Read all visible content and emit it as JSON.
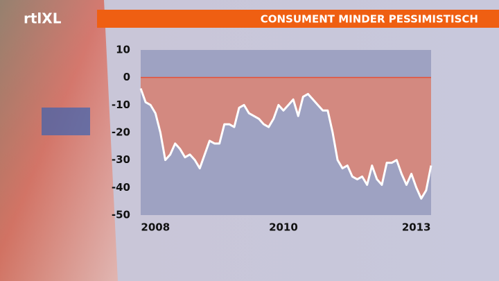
{
  "logo": "rtlXL",
  "chart_data": {
    "type": "area",
    "title": "CONSUMENT MINDER PESSIMISTISCH",
    "categories": [
      null,
      null,
      null,
      "2008",
      null,
      null,
      null,
      null,
      null,
      null,
      null,
      null,
      null,
      null,
      null,
      null,
      null,
      null,
      null,
      null,
      null,
      null,
      null,
      null,
      null,
      null,
      null,
      null,
      null,
      "2010",
      null,
      null,
      null,
      null,
      null,
      null,
      null,
      null,
      null,
      null,
      null,
      null,
      null,
      null,
      null,
      null,
      null,
      null,
      null,
      null,
      null,
      null,
      null,
      null,
      null,
      null,
      "2013",
      null,
      null,
      null
    ],
    "values": [
      -4,
      -9,
      -10,
      -13,
      -20,
      -30,
      -28,
      -24,
      -26,
      -29,
      -28,
      -30,
      -33,
      -28,
      -23,
      -24,
      -24,
      -17,
      -17,
      -18,
      -11,
      -10,
      -13,
      -14,
      -15,
      -17,
      -18,
      -15,
      -10,
      -12,
      -10,
      -8,
      -14,
      -7,
      -6,
      -8,
      -10,
      -12,
      -12,
      -20,
      -30,
      -33,
      -32,
      -36,
      -37,
      -36,
      -39,
      -32,
      -37,
      -39,
      -31,
      -31,
      -30,
      -35,
      -39,
      -35,
      -40,
      -44,
      -41,
      -32
    ],
    "color": "#dc8574",
    "line_color": "#ffffff",
    "ylim": [
      -50,
      10
    ],
    "yticks": [
      10,
      0,
      -10,
      -20,
      -30,
      -40,
      -50
    ]
  }
}
